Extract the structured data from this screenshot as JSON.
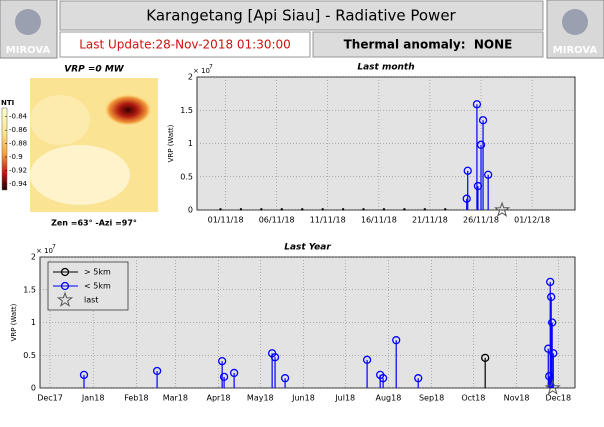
{
  "header": {
    "logo_left": "MIROVA",
    "logo_right": "MIROVA",
    "title": "Karangetang [Api Siau] - Radiative Power",
    "last_update": "Last Update:28-Nov-2018 01:30:00",
    "thermal_anomaly": "Thermal anomaly:  NONE"
  },
  "chart_data": [
    {
      "type": "image",
      "title": "VRP =0 MW",
      "colorbar_label": "NTI",
      "caption": "Zen =63° -Azi =97°",
      "clim": [
        -0.949,
        -0.827
      ],
      "colorbar_ticks": [
        -0.84,
        -0.86,
        -0.88,
        -0.9,
        -0.92,
        -0.94
      ]
    },
    {
      "type": "stem",
      "title": "Last month",
      "ylabel": "VRP (Watt)",
      "y_scale_label": "× 10",
      "y_scale_exponent": 7,
      "grid": true,
      "xlim": [
        -1.8,
        35.2
      ],
      "xticks": [
        {
          "value": 1,
          "label": "01/11/18"
        },
        {
          "value": 6,
          "label": "06/11/18"
        },
        {
          "value": 11,
          "label": "11/11/18"
        },
        {
          "value": 16,
          "label": "16/11/18"
        },
        {
          "value": 21,
          "label": "21/11/18"
        },
        {
          "value": 26,
          "label": "26/11/18"
        },
        {
          "value": 31,
          "label": "01/12/18"
        }
      ],
      "ylim": [
        0,
        2
      ],
      "yticks": [
        0,
        0.5,
        1,
        1.5,
        2
      ],
      "series": [
        {
          "color": "#000000",
          "marker": "dot",
          "x": [
            0.5,
            2.5,
            4.5,
            6.5,
            8.5,
            10.5,
            12.5,
            14.5,
            16.5,
            18.5,
            20.5,
            22.5
          ],
          "values": [
            0.01,
            0.01,
            0.01,
            0.01,
            0.01,
            0.01,
            0.01,
            0.01,
            0.01,
            0.01,
            0.01,
            0.01
          ]
        },
        {
          "color": "#0000ff",
          "marker": "circle",
          "x": [
            24.6,
            24.7,
            25.6,
            25.7,
            26.0,
            26.2,
            26.7
          ],
          "values": [
            0.17,
            0.59,
            1.59,
            0.36,
            0.98,
            1.35,
            0.53
          ]
        },
        {
          "color": "#555555",
          "marker": "star",
          "x": [
            28.06
          ],
          "values": [
            0
          ]
        }
      ]
    },
    {
      "type": "stem",
      "title": "Last Year",
      "ylabel": "VRP (Watt)",
      "y_scale_label": "× 10",
      "y_scale_exponent": 7,
      "grid": true,
      "legend": "upper left",
      "xlim": [
        -7.2,
        377
      ],
      "xticks": [
        {
          "value": 0,
          "label": "Dec17"
        },
        {
          "value": 31,
          "label": "Jan18"
        },
        {
          "value": 62,
          "label": "Feb18"
        },
        {
          "value": 90,
          "label": "Mar18"
        },
        {
          "value": 121,
          "label": "Apr18"
        },
        {
          "value": 151,
          "label": "May18"
        },
        {
          "value": 182,
          "label": "Jun18"
        },
        {
          "value": 212,
          "label": "Jul18"
        },
        {
          "value": 243,
          "label": "Aug18"
        },
        {
          "value": 274,
          "label": "Sep18"
        },
        {
          "value": 304,
          "label": "Oct18"
        },
        {
          "value": 335,
          "label": "Nov18"
        },
        {
          "value": 365,
          "label": "Dec18"
        }
      ],
      "ylim": [
        0,
        2
      ],
      "yticks": [
        0,
        0.5,
        1,
        1.5,
        2
      ],
      "series": [
        {
          "name": "> 5km",
          "color": "#000000",
          "marker": "circle",
          "x": [
            312.5
          ],
          "values": [
            0.46
          ]
        },
        {
          "name": "< 5km",
          "color": "#0000ff",
          "marker": "circle",
          "x": [
            24.4,
            76.9,
            123.6,
            125,
            132.2,
            159.5,
            161.6,
            168.8,
            227.7,
            237.1,
            239.2,
            248.6,
            264.4,
            357.8,
            358.5,
            359.2,
            359.9,
            360.6,
            361.4
          ],
          "values": [
            0.2,
            0.26,
            0.41,
            0.17,
            0.23,
            0.53,
            0.47,
            0.15,
            0.43,
            0.2,
            0.15,
            0.73,
            0.15,
            0.6,
            0.18,
            1.62,
            1.39,
            1.0,
            0.53
          ]
        },
        {
          "name": "last",
          "color": "#555555",
          "marker": "star",
          "x": [
            361
          ],
          "values": [
            0
          ]
        }
      ]
    }
  ]
}
